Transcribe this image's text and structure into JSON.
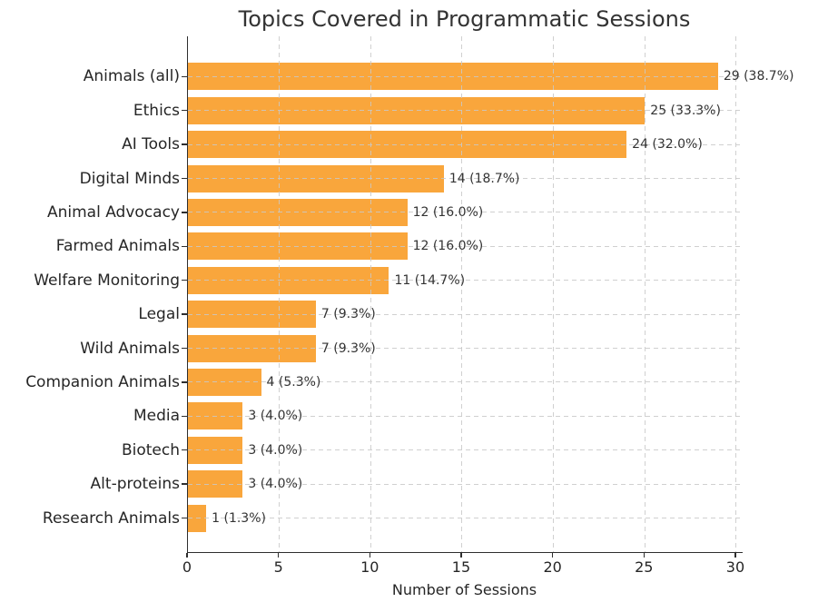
{
  "chart_data": {
    "type": "bar",
    "orientation": "horizontal",
    "title": "Topics Covered in Programmatic Sessions",
    "xlabel": "Number of Sessions",
    "ylabel": "",
    "categories": [
      "Animals (all)",
      "Ethics",
      "AI Tools",
      "Digital Minds",
      "Animal Advocacy",
      "Farmed Animals",
      "Welfare Monitoring",
      "Legal",
      "Wild Animals",
      "Companion Animals",
      "Media",
      "Biotech",
      "Alt-proteins",
      "Research Animals"
    ],
    "values": [
      29,
      25,
      24,
      14,
      12,
      12,
      11,
      7,
      7,
      4,
      3,
      3,
      3,
      1
    ],
    "bar_labels": [
      "29 (38.7%)",
      "25 (33.3%)",
      "24 (32.0%)",
      "14 (18.7%)",
      "12 (16.0%)",
      "12 (16.0%)",
      "11 (14.7%)",
      "7 (9.3%)",
      "7 (9.3%)",
      "4 (5.3%)",
      "3 (4.0%)",
      "3 (4.0%)",
      "3 (4.0%)",
      "1 (1.3%)"
    ],
    "x_ticks": [
      0,
      5,
      10,
      15,
      20,
      25,
      30
    ],
    "xlim": [
      0,
      30.35
    ],
    "grid": "dashed, both axes, drawn over bars",
    "legend_position": "none",
    "bar_color": "#F9A63C",
    "text_color": "#333333",
    "grid_color": "#C8C8C8",
    "axis_color": "#2E2E2E"
  }
}
